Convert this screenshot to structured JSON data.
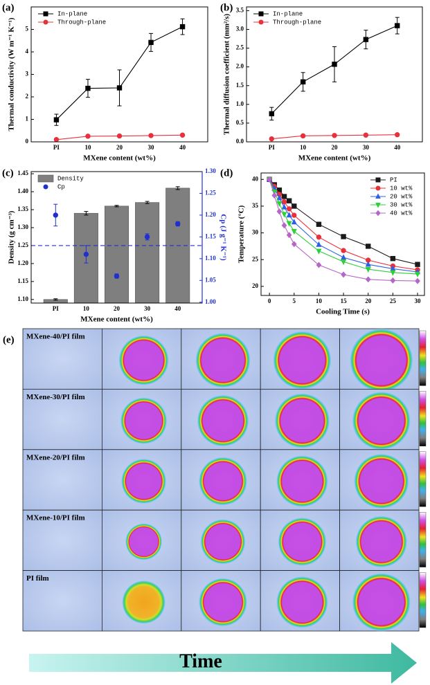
{
  "chart_data": [
    {
      "type": "line",
      "panel_label": "(a)",
      "categories": [
        "PI",
        "10",
        "20",
        "30",
        "40"
      ],
      "xlabel": "MXene content (wt%)",
      "ylabel": "Thermal conductivity (W m⁻¹ K⁻¹)",
      "ylim": [
        0,
        6
      ],
      "yticks": [
        0,
        1,
        2,
        3,
        4,
        5
      ],
      "legend": "upper left",
      "series": [
        {
          "name": "In-plane",
          "color": "#000000",
          "marker": "square",
          "values": [
            0.98,
            2.38,
            2.4,
            4.42,
            5.12
          ],
          "errors": [
            0.25,
            0.4,
            0.8,
            0.4,
            0.35
          ]
        },
        {
          "name": "Through-plane",
          "color": "#e8313a",
          "marker": "circle",
          "values": [
            0.1,
            0.25,
            0.26,
            0.28,
            0.3
          ]
        }
      ]
    },
    {
      "type": "line",
      "panel_label": "(b)",
      "categories": [
        "PI",
        "10",
        "20",
        "30",
        "40"
      ],
      "xlabel": "MXene content (wt%)",
      "ylabel": "Thermal diffusion coefficient (mm²/s)",
      "ylim": [
        0,
        3.6
      ],
      "yticks": [
        {
          "value": 0,
          "label": "0.0"
        },
        0.5,
        {
          "value": 1,
          "label": "1.0"
        },
        1.5,
        {
          "value": 2,
          "label": "2.0"
        },
        2.5,
        {
          "value": 3,
          "label": "3.0"
        },
        3.5
      ],
      "legend": "upper left",
      "series": [
        {
          "name": "In-plane",
          "color": "#000000",
          "marker": "square",
          "values": [
            0.75,
            1.6,
            2.07,
            2.73,
            3.1
          ],
          "errors": [
            0.17,
            0.25,
            0.47,
            0.25,
            0.22
          ]
        },
        {
          "name": "Through-plane",
          "color": "#e8313a",
          "marker": "circle",
          "values": [
            0.08,
            0.16,
            0.17,
            0.18,
            0.19
          ]
        }
      ]
    },
    {
      "type": "bar",
      "panel_label": "(c)",
      "categories": [
        "PI",
        "10",
        "20",
        "30",
        "40"
      ],
      "xlabel": "MXene content (wt%)",
      "ylabel": "Density (g cm⁻³)",
      "y2label": "Cp (J g⁻¹ K⁻¹)",
      "ylim": [
        1.09,
        1.456
      ],
      "yticks": [
        {
          "value": 1.1,
          "label": "1.10"
        },
        1.15,
        {
          "value": 1.2,
          "label": "1.20"
        },
        1.25,
        {
          "value": 1.3,
          "label": "1.30"
        },
        1.35,
        {
          "value": 1.4,
          "label": "1.40"
        },
        1.45
      ],
      "y2lim": [
        0.998,
        1.3
      ],
      "y2ticks": [
        {
          "value": 1,
          "label": "1.00"
        },
        1.05,
        {
          "value": 1.1,
          "label": "1.10"
        },
        1.15,
        {
          "value": 1.2,
          "label": "1.20"
        },
        1.25,
        {
          "value": 1.3,
          "label": "1.30"
        }
      ],
      "y2color": "#1f2fd0",
      "legend": "upper left",
      "hline": {
        "axis": "y2",
        "value": 1.13,
        "color": "#1f2fd0"
      },
      "series": [
        {
          "name": "Density",
          "color": "#7f7f7f",
          "values": [
            1.1,
            1.34,
            1.36,
            1.37,
            1.41
          ],
          "errors": [
            0.002,
            0.005,
            0.002,
            0.003,
            0.004
          ]
        },
        {
          "name": "Cp",
          "type": "scatter",
          "axis": "y2",
          "color": "#1f2fd0",
          "marker": "circle",
          "values": [
            1.2,
            1.11,
            1.06,
            1.15,
            1.18
          ],
          "errors": [
            0.025,
            0.02,
            0.005,
            0.007,
            0.005
          ]
        }
      ]
    },
    {
      "type": "line",
      "panel_label": "(d)",
      "x": [
        0,
        1,
        2,
        3,
        4,
        5,
        10,
        15,
        20,
        25,
        30
      ],
      "xlim": [
        -1.7,
        31.4
      ],
      "xticks": [
        0,
        5,
        10,
        15,
        20,
        25,
        30
      ],
      "ylim": [
        18.3,
        41.2
      ],
      "yticks": [
        20,
        25,
        30,
        35,
        40
      ],
      "xlabel": "Cooling Time (s)",
      "ylabel": "Temperature (°C)",
      "legend": "upper right",
      "series": [
        {
          "name": "PI",
          "color": "#1a1a1a",
          "marker": "square",
          "values": [
            40,
            39,
            38,
            36.8,
            36,
            35,
            31.6,
            29.3,
            27.5,
            25.2,
            24.1
          ]
        },
        {
          "name": "10 wt%",
          "color": "#e8313a",
          "marker": "circle",
          "values": [
            40,
            38.7,
            37.2,
            35.8,
            34.5,
            33.3,
            29.2,
            26.7,
            24.9,
            23.8,
            23.1
          ]
        },
        {
          "name": "20 wt%",
          "color": "#2f5fe8",
          "marker": "triangle-up",
          "values": [
            40,
            38.3,
            36.5,
            34.8,
            33.3,
            32,
            27.8,
            25.4,
            24.1,
            23.3,
            22.7
          ]
        },
        {
          "name": "30 wt%",
          "color": "#2ed03a",
          "marker": "triangle-down",
          "values": [
            40,
            37.7,
            35.5,
            33.5,
            31.8,
            30.3,
            26.6,
            24.6,
            23.2,
            22.6,
            22.3
          ]
        },
        {
          "name": "40 wt%",
          "color": "#b665c8",
          "marker": "diamond",
          "values": [
            40,
            37,
            34,
            31.4,
            29.6,
            27.9,
            24,
            22.2,
            21.3,
            21.1,
            21
          ]
        }
      ]
    }
  ],
  "panel_e": {
    "label": "(e)",
    "rows": [
      "MXene-40/PI film",
      "MXene-30/PI film",
      "MXene-20/PI film",
      "MXene-10/PI film",
      "PI film"
    ],
    "arrow_label": "Time"
  }
}
